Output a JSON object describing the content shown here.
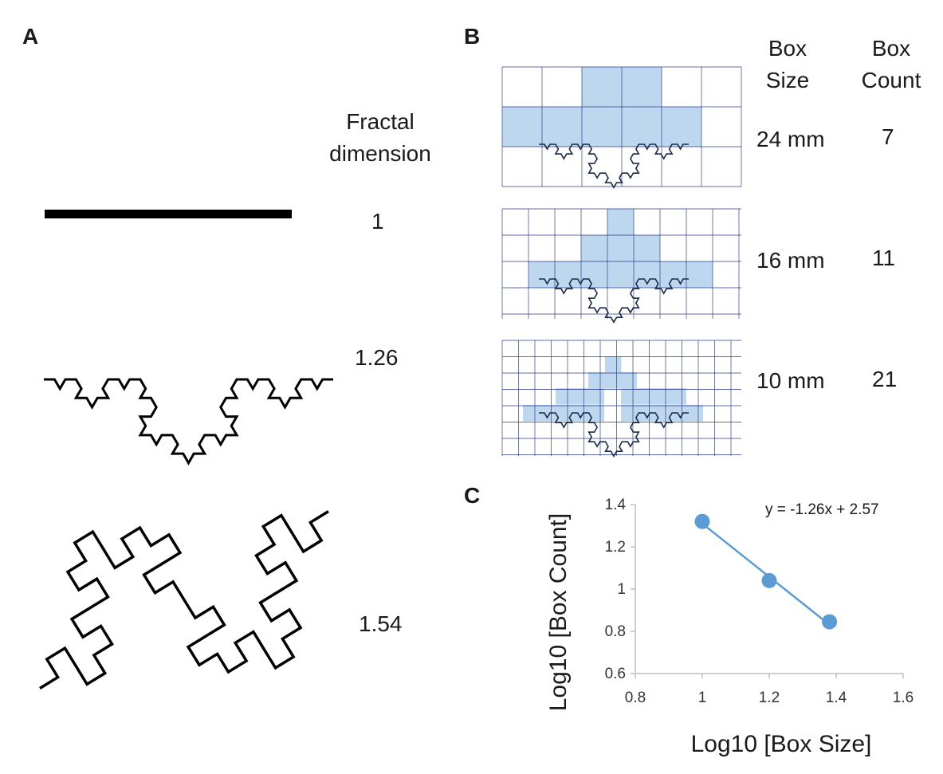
{
  "panels": {
    "a": {
      "letter": "A",
      "header": [
        "Fractal",
        "dimension"
      ],
      "rows": [
        {
          "shape": "straight-line",
          "dimension": "1"
        },
        {
          "shape": "koch-curve",
          "dimension": "1.26"
        },
        {
          "shape": "quadratic-koch-curve",
          "dimension": "1.54"
        }
      ]
    },
    "b": {
      "letter": "B",
      "col_box_size": [
        "Box",
        "Size"
      ],
      "col_box_count": [
        "Box",
        "Count"
      ],
      "rows": [
        {
          "box_size": "24 mm",
          "box_count": "7"
        },
        {
          "box_size": "16 mm",
          "box_count": "11"
        },
        {
          "box_size": "10 mm",
          "box_count": "21"
        }
      ]
    },
    "c": {
      "letter": "C"
    }
  },
  "colors": {
    "grid_fill": "#bcd7ee",
    "grid_line": "#2b3a8f",
    "series": "#5b9bd5",
    "curve": "#000000"
  },
  "chart_data": {
    "type": "scatter",
    "xlabel": "Log10 [Box Size]",
    "ylabel": "Log10 [Box Count]",
    "xlim": [
      0.8,
      1.6
    ],
    "ylim": [
      0.6,
      1.4
    ],
    "xticks": [
      "0.8",
      "1",
      "1.2",
      "1.4",
      "1.6"
    ],
    "yticks": [
      "0.6",
      "0.8",
      "1",
      "1.2",
      "1.4"
    ],
    "grid": false,
    "series": [
      {
        "x": [
          1.0,
          1.2,
          1.38
        ],
        "y": [
          1.32,
          1.04,
          0.845
        ]
      }
    ],
    "trendline": {
      "slope": -1.26,
      "intercept": 2.57,
      "x_range": [
        1.0,
        1.38
      ]
    },
    "annotation": "y = -1.26x + 2.57"
  }
}
